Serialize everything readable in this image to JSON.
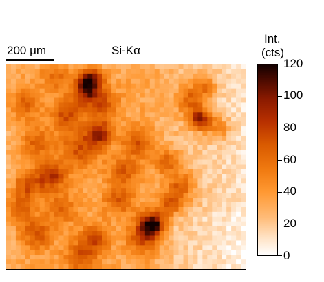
{
  "figure": {
    "map_label": "Si-Kα",
    "scale_label": "200 μm",
    "colorbar": {
      "title_line1": "Int.",
      "title_line2": "(cts)",
      "ticks": [
        "120",
        "100",
        "80",
        "60",
        "40",
        "20",
        "0"
      ],
      "range": [
        0,
        120
      ],
      "colormap": [
        "#ffffff",
        "#ffbb77",
        "#ff9933",
        "#d95a00",
        "#8a1a00",
        "#120000"
      ]
    }
  }
}
